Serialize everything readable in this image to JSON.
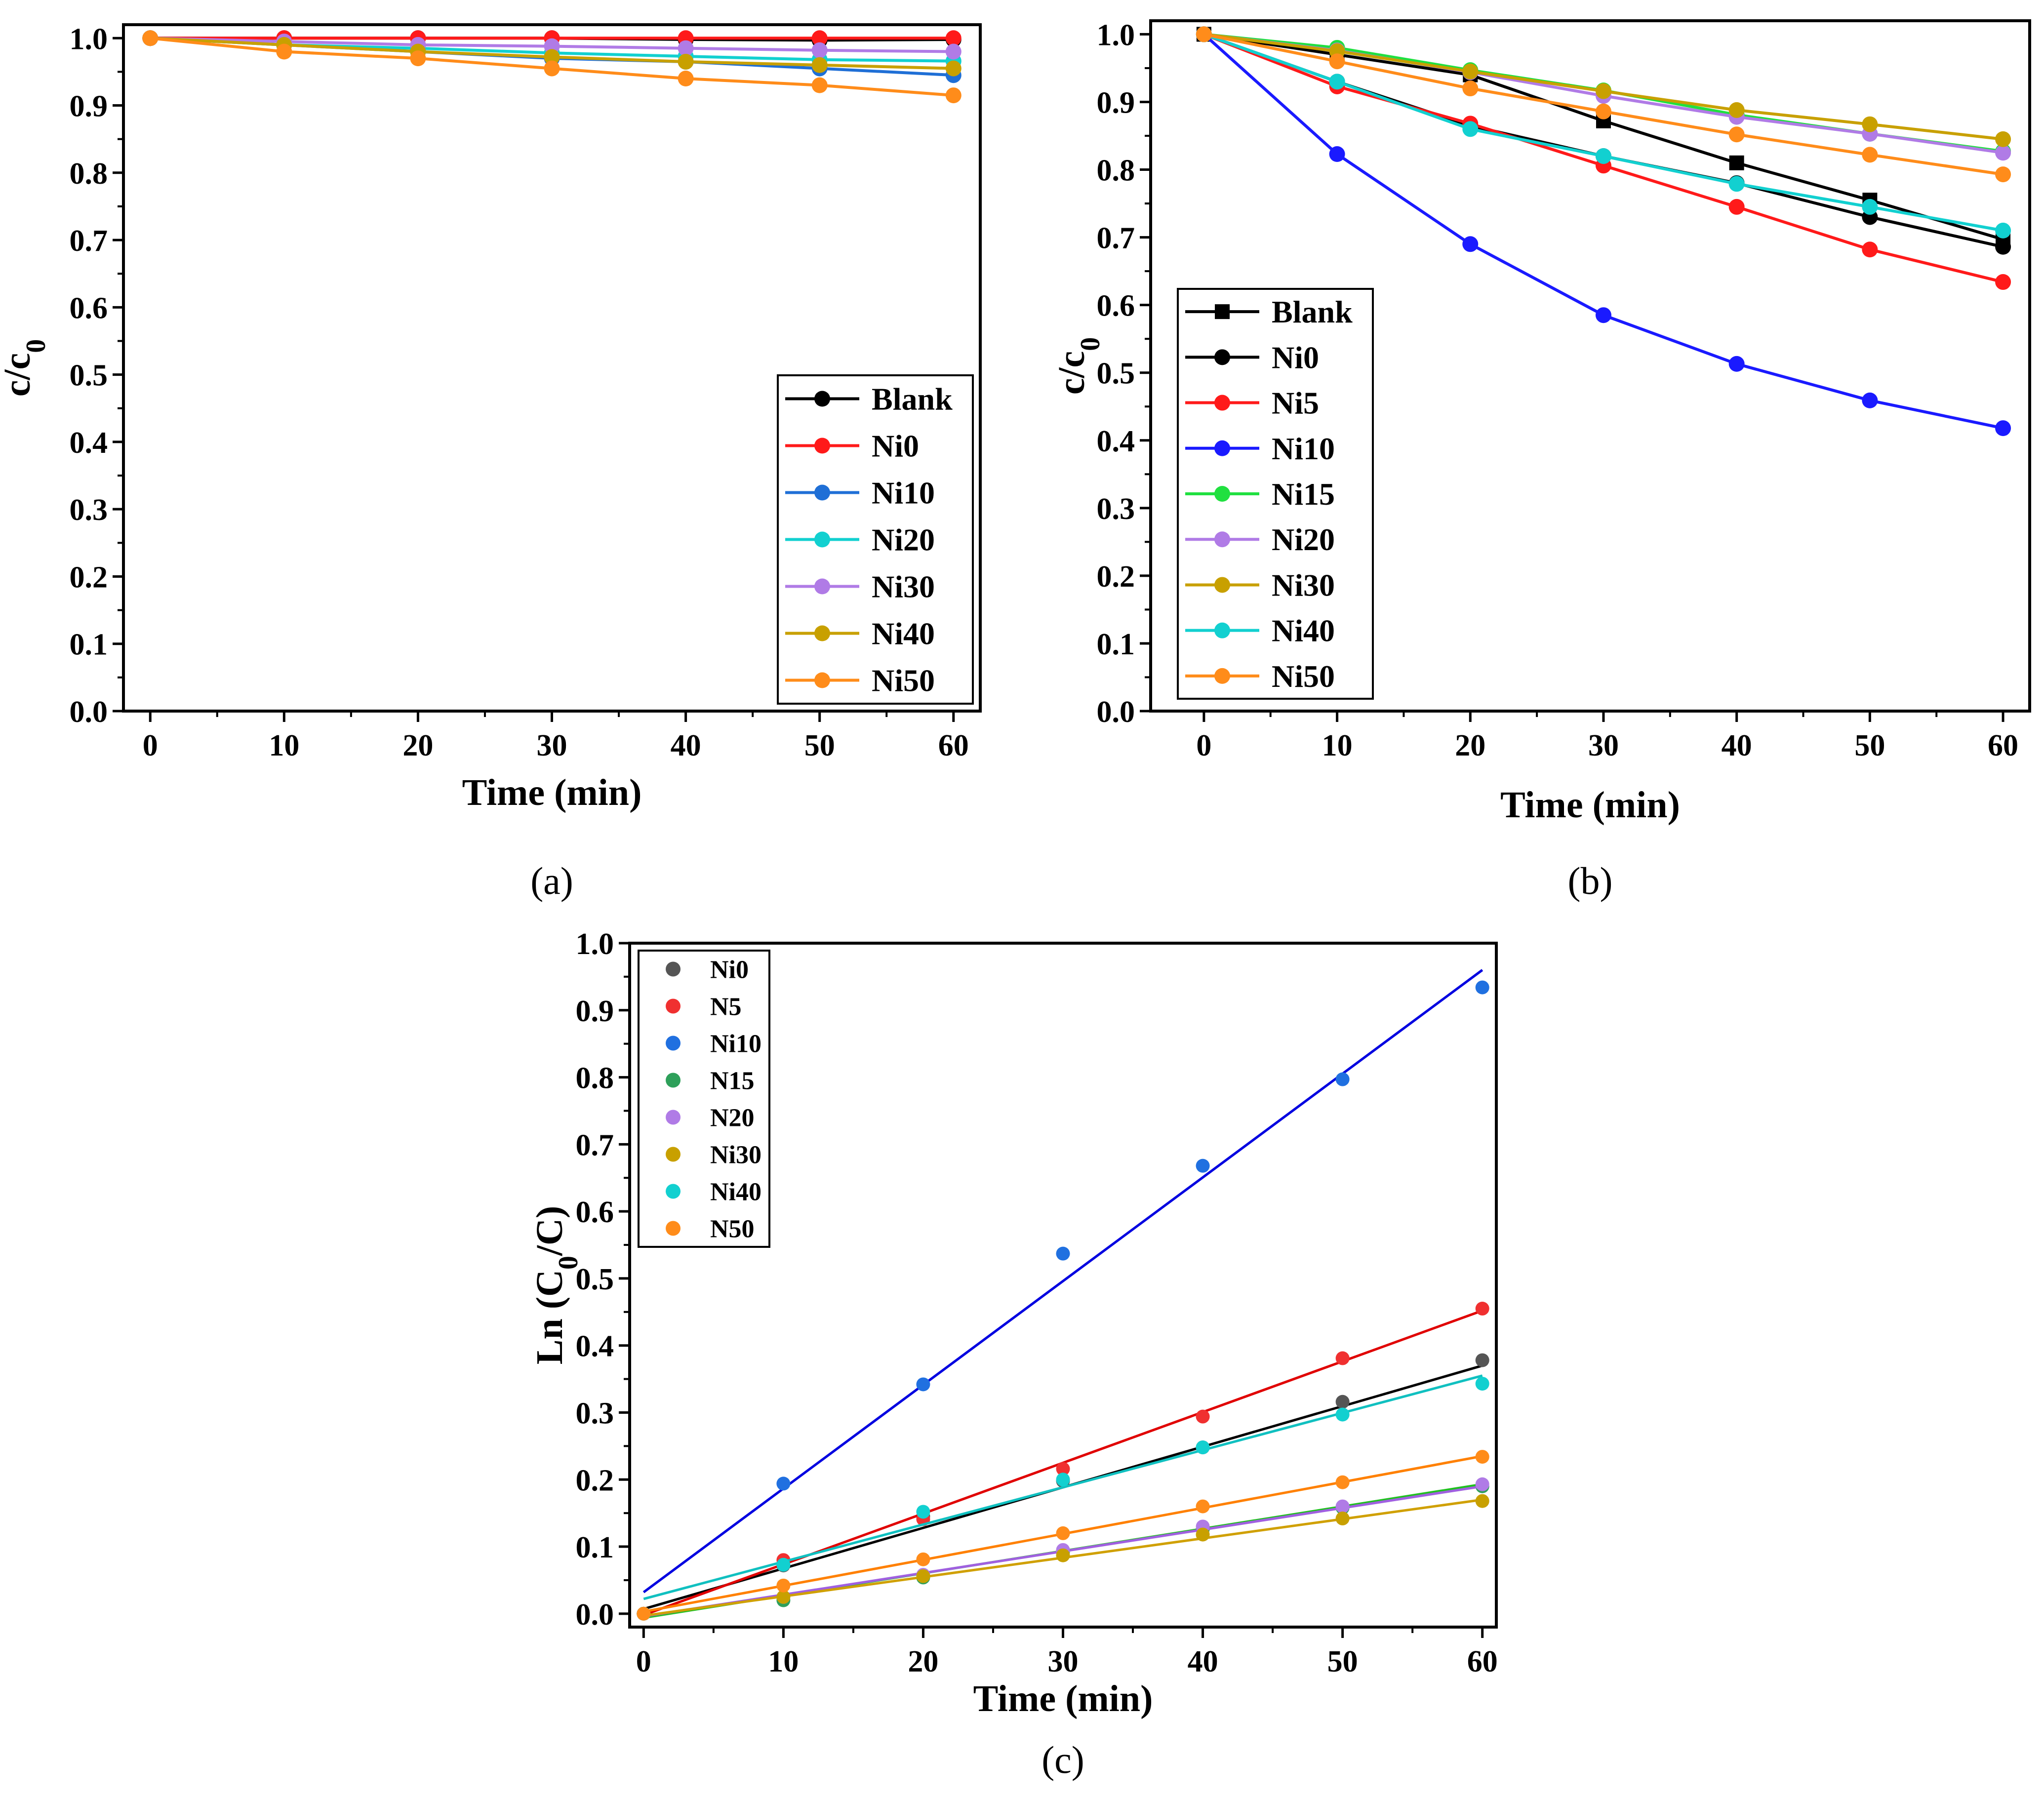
{
  "chart_data": [
    {
      "type": "line",
      "panel_label": "(a)",
      "title": "",
      "xlabel": "Time (min)",
      "ylabel": "c/c",
      "ylabel_sub": "0",
      "xlim": [
        -2,
        62
      ],
      "ylim": [
        0,
        1.02
      ],
      "x": [
        0,
        10,
        20,
        30,
        40,
        50,
        60
      ],
      "xticks": [
        "0",
        "10",
        "20",
        "30",
        "40",
        "50",
        "60"
      ],
      "yticks": [
        "0.0",
        "0.1",
        "0.2",
        "0.3",
        "0.4",
        "0.5",
        "0.6",
        "0.7",
        "0.8",
        "0.9",
        "1.0"
      ],
      "legend_position": "bottom-right",
      "series": [
        {
          "name": "Blank",
          "color": "#000000",
          "marker": "circle",
          "values": [
            1.0,
            1.0,
            1.0,
            1.0,
            0.998,
            0.997,
            0.998
          ]
        },
        {
          "name": "Ni0",
          "color": "#ff1a1a",
          "marker": "circle",
          "values": [
            1.0,
            1.0,
            1.0,
            1.0,
            1.0,
            1.0,
            1.0
          ]
        },
        {
          "name": "Ni10",
          "color": "#1f6fd6",
          "marker": "circle",
          "values": [
            1.0,
            0.99,
            0.98,
            0.97,
            0.965,
            0.955,
            0.945
          ]
        },
        {
          "name": "Ni20",
          "color": "#12d0d0",
          "marker": "circle",
          "values": [
            1.0,
            0.99,
            0.985,
            0.978,
            0.973,
            0.968,
            0.966
          ]
        },
        {
          "name": "Ni30",
          "color": "#b07be6",
          "marker": "circle",
          "values": [
            1.0,
            0.995,
            0.99,
            0.988,
            0.985,
            0.982,
            0.98
          ]
        },
        {
          "name": "Ni40",
          "color": "#c8a000",
          "marker": "circle",
          "values": [
            1.0,
            0.99,
            0.98,
            0.972,
            0.965,
            0.96,
            0.955
          ]
        },
        {
          "name": "Ni50",
          "color": "#ff8c1a",
          "marker": "circle",
          "values": [
            1.0,
            0.98,
            0.97,
            0.955,
            0.94,
            0.93,
            0.915
          ]
        }
      ]
    },
    {
      "type": "line",
      "panel_label": "(b)",
      "title": "",
      "xlabel": "Time (min)",
      "ylabel": "c/c",
      "ylabel_sub": "0",
      "xlim": [
        -4,
        62
      ],
      "ylim": [
        0,
        1.02
      ],
      "x": [
        0,
        10,
        20,
        30,
        40,
        50,
        60
      ],
      "xticks": [
        "0",
        "10",
        "20",
        "30",
        "40",
        "50",
        "60"
      ],
      "yticks": [
        "0.0",
        "0.1",
        "0.2",
        "0.3",
        "0.4",
        "0.5",
        "0.6",
        "0.7",
        "0.8",
        "0.9",
        "1.0"
      ],
      "legend_position": "bottom-left",
      "series": [
        {
          "name": "Blank",
          "color": "#000000",
          "marker": "square",
          "values": [
            1.0,
            0.97,
            0.94,
            0.872,
            0.81,
            0.755,
            0.697
          ]
        },
        {
          "name": "Ni0",
          "color": "#000000",
          "marker": "circle",
          "values": [
            1.0,
            0.93,
            0.865,
            0.82,
            0.78,
            0.73,
            0.686
          ]
        },
        {
          "name": "Ni5",
          "color": "#ff1a1a",
          "marker": "circle",
          "values": [
            1.0,
            0.923,
            0.868,
            0.806,
            0.745,
            0.682,
            0.634
          ]
        },
        {
          "name": "Ni10",
          "color": "#1a1aff",
          "marker": "circle",
          "values": [
            1.0,
            0.823,
            0.69,
            0.585,
            0.513,
            0.459,
            0.418
          ]
        },
        {
          "name": "Ni15",
          "color": "#20e040",
          "marker": "circle",
          "values": [
            1.0,
            0.98,
            0.947,
            0.917,
            0.881,
            0.853,
            0.827
          ]
        },
        {
          "name": "Ni20",
          "color": "#b07be6",
          "marker": "circle",
          "values": [
            1.0,
            0.976,
            0.944,
            0.909,
            0.878,
            0.853,
            0.825
          ]
        },
        {
          "name": "Ni30",
          "color": "#c8a000",
          "marker": "circle",
          "values": [
            1.0,
            0.975,
            0.945,
            0.916,
            0.888,
            0.867,
            0.845
          ]
        },
        {
          "name": "Ni40",
          "color": "#12d0d0",
          "marker": "circle",
          "values": [
            1.0,
            0.93,
            0.86,
            0.82,
            0.779,
            0.745,
            0.71
          ]
        },
        {
          "name": "Ni50",
          "color": "#ff8c1a",
          "marker": "circle",
          "values": [
            1.0,
            0.96,
            0.92,
            0.886,
            0.852,
            0.822,
            0.793
          ]
        }
      ]
    },
    {
      "type": "scatter",
      "panel_label": "(c)",
      "title": "",
      "xlabel": "Time (min)",
      "ylabel": "Ln (C",
      "ylabel_sub": "0",
      "ylabel_tail": "/C)",
      "xlim": [
        -1,
        61
      ],
      "ylim": [
        -0.02,
        1.0
      ],
      "x": [
        0,
        10,
        20,
        30,
        40,
        50,
        60
      ],
      "xticks": [
        "0",
        "10",
        "20",
        "30",
        "40",
        "50",
        "60"
      ],
      "yticks": [
        "0.0",
        "0.1",
        "0.2",
        "0.3",
        "0.4",
        "0.5",
        "0.6",
        "0.7",
        "0.8",
        "0.9",
        "1.0"
      ],
      "legend_position": "top-left",
      "series": [
        {
          "name": "Ni0",
          "color": "#555555",
          "line_color": "#000000",
          "values": [
            0.0,
            0.072,
            0.145,
            0.198,
            0.248,
            0.316,
            0.378
          ],
          "fit": [
            0.007,
            0.37
          ]
        },
        {
          "name": "N5",
          "color": "#f03030",
          "line_color": "#e00000",
          "values": [
            0.0,
            0.08,
            0.141,
            0.216,
            0.294,
            0.381,
            0.455
          ],
          "fit": [
            -0.002,
            0.452
          ]
        },
        {
          "name": "Ni10",
          "color": "#2070e0",
          "line_color": "#0000e0",
          "values": [
            0.0,
            0.194,
            0.342,
            0.537,
            0.668,
            0.797,
            0.934
          ],
          "fit": [
            0.032,
            0.96
          ]
        },
        {
          "name": "N15",
          "color": "#2ea05a",
          "line_color": "#20c020",
          "values": [
            0.0,
            0.02,
            0.054,
            0.092,
            0.126,
            0.158,
            0.19
          ],
          "fit": [
            -0.006,
            0.193
          ]
        },
        {
          "name": "N20",
          "color": "#b07be6",
          "line_color": "#a060e0",
          "values": [
            0.0,
            0.025,
            0.058,
            0.095,
            0.13,
            0.16,
            0.193
          ],
          "fit": [
            -0.004,
            0.19
          ]
        },
        {
          "name": "Ni30",
          "color": "#c8a000",
          "line_color": "#d0a000",
          "values": [
            0.0,
            0.025,
            0.056,
            0.087,
            0.118,
            0.142,
            0.168
          ],
          "fit": [
            -0.003,
            0.17
          ]
        },
        {
          "name": "Ni40",
          "color": "#12d0d0",
          "line_color": "#10c0c0",
          "values": [
            0.0,
            0.073,
            0.152,
            0.2,
            0.248,
            0.297,
            0.343
          ],
          "fit": [
            0.022,
            0.355
          ]
        },
        {
          "name": "N50",
          "color": "#ff8c1a",
          "line_color": "#ff8000",
          "values": [
            0.0,
            0.042,
            0.081,
            0.12,
            0.16,
            0.196,
            0.234
          ],
          "fit": [
            0.003,
            0.235
          ]
        }
      ]
    }
  ]
}
